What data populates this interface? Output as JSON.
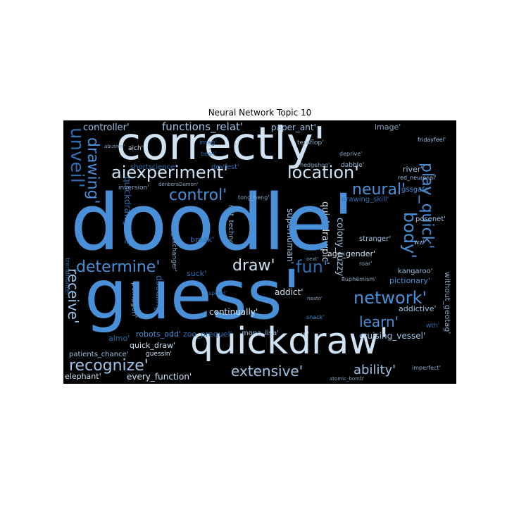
{
  "title": "Neural Network Topic 10",
  "palette": {
    "background": "#000000",
    "mid_blue": "#4a90d9",
    "pale": "#cfe3f4",
    "light_blue": "#9fc3e6",
    "deep_blue": "#2f6fb0",
    "gray_blue": "#8aa6c2"
  },
  "words": {
    "doodle": "doodle'",
    "guess": "guess'",
    "quickdraw": "quickdraw'",
    "correctly": "correctly'",
    "aiexperiment": "aiexperiment'",
    "location": "location'",
    "neural": "neural'",
    "control": "control'",
    "determine": "determine'",
    "recognize": "recognize'",
    "extensive": "extensive'",
    "ability": "ability'",
    "network": "network'",
    "learn": "learn'",
    "fun": "fun'",
    "draw": "draw'",
    "body": "body'",
    "play_quick": "play_quick'",
    "unveil": "unveil'",
    "drawing": "drawing'",
    "receive": "receive'",
    "controller": "controller'",
    "functions_relat": "functions_relat'",
    "paper_ant": "paper_ant'",
    "image": "image'",
    "fridayfeel": "fridayfeel'",
    "river": "river'",
    "red_neuronal": "red_neuronal'",
    "gssgafe": "gssgafe'",
    "posenet": "posenet'",
    "wz": "wz'",
    "drawing_skill": "drawing_skill'",
    "quickdrawpic": "quickdrawpic'",
    "superhuman": "superhuman'",
    "colony_fuzzy": "colony_fuzzy'",
    "stranger": "stranger'",
    "age_gender": "age_gender'",
    "kangaroo": "kangaroo'",
    "pictionary": "pictionary'",
    "addict": "addict'",
    "continually": "continually'",
    "addictive": "addictive'",
    "cruising_vessel": "cruising_vessel'",
    "quickdrawgame": "quickdrawgame'",
    "doodling": "doodling'",
    "pentagon": "pentagon'",
    "robots_odd": "robots_odd'",
    "zoo_prequel": "zoo_prequel'",
    "mona_lisa": "mona_lisa'",
    "quick_draw": "quick_draw'",
    "patients_chance": "patients_chance'",
    "guessin": "guessin'",
    "elephant": "elephant'",
    "every_function": "every_function'",
    "without_geotag": "without_geotag'",
    "imperfect": "imperfect'",
    "teraflop": "teraflop'",
    "deprive": "deprive'",
    "hedgehog": "hedgehog'",
    "dabble": "dabble'",
    "abusive": "abusive'",
    "aich": "aich'",
    "bean": "bean'",
    "devfest": "devfest'",
    "shortscience": "shortscience'",
    "inversion": "inversion'",
    "denboraDemon": "denboraDemon'",
    "tong_heng": "tong_heng'",
    "mit_technol": "mit_technol'",
    "heat_exchanger": "heat_exchanger'",
    "break": "break'",
    "suck": "suck'",
    "spoon": "spoon'",
    "trendhunter": "trendhunter'",
    "almo": "almo'",
    "ui": "ui'",
    "neato": "neato'",
    "snack": "snack'",
    "euphemism": "euphemism'",
    "roar": "roar'",
    "oext": "oext'",
    "wth": "wth'",
    "atomic_bomb": "atomic_bomb'",
    "imag": "imag'"
  }
}
